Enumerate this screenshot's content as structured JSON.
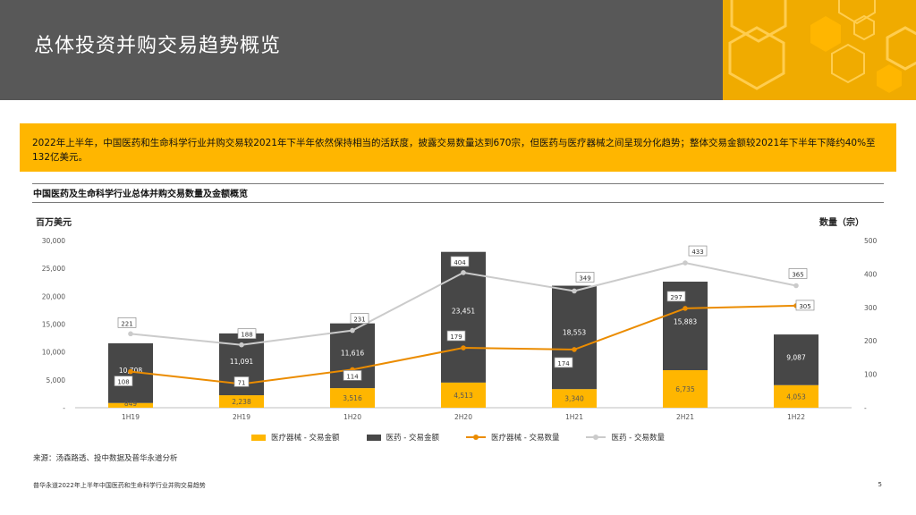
{
  "header": {
    "title": "总体投资并购交易趋势概览"
  },
  "summary": {
    "text": "2022年上半年，中国医药和生命科学行业并购交易较2021年下半年依然保持相当的活跃度，披露交易数量达到670宗，但医药与医疗器械之间呈现分化趋势；整体交易金额较2021年下半年下降约40%至132亿美元。"
  },
  "chart_title": "中国医药及生命科学行业总体并购交易数量及金额概览",
  "axis_labels": {
    "left": "百万美元",
    "right": "数量（宗）"
  },
  "chart_data": {
    "type": "bar",
    "stacked": true,
    "categories": [
      "1H19",
      "2H19",
      "1H20",
      "2H20",
      "1H21",
      "2H21",
      "1H22"
    ],
    "series": [
      {
        "name": "医疗器械 - 交易金额",
        "type": "bar",
        "axis": "left",
        "color": "#ffb600",
        "values": [
          849,
          2238,
          3516,
          4513,
          3340,
          6735,
          4053
        ],
        "labels": [
          "849",
          "2,238",
          "3,516",
          "4,513",
          "3,340",
          "6,735",
          "4,053"
        ]
      },
      {
        "name": "医药 - 交易金额",
        "type": "bar",
        "axis": "left",
        "color": "#474747",
        "values": [
          10708,
          11091,
          11616,
          23451,
          18553,
          15883,
          9087
        ],
        "labels": [
          "10,708",
          "11,091",
          "11,616",
          "23,451",
          "18,553",
          "15,883",
          "9,087"
        ]
      },
      {
        "name": "医疗器械 - 交易数量",
        "type": "line",
        "axis": "right",
        "color": "#eb8c00",
        "values": [
          108,
          71,
          114,
          179,
          174,
          297,
          305
        ]
      },
      {
        "name": "医药 - 交易数量",
        "type": "line",
        "axis": "right",
        "color": "#cbcbcb",
        "values": [
          221,
          188,
          231,
          404,
          349,
          433,
          365
        ]
      }
    ],
    "y_left": {
      "ticks": [
        "30,000",
        "25,000",
        "20,000",
        "15,000",
        "10,000",
        "5,000",
        "-"
      ],
      "min": 0,
      "max": 30000
    },
    "y_right": {
      "ticks": [
        "500",
        "400",
        "300",
        "200",
        "100",
        "-"
      ],
      "min": 0,
      "max": 500
    },
    "grid": false,
    "legend": "bottom"
  },
  "source": "来源：汤森路透、投中数据及普华永道分析",
  "footer": {
    "text": "普华永道2022年上半年中国医药和生命科学行业并购交易趋势",
    "page": "5"
  }
}
